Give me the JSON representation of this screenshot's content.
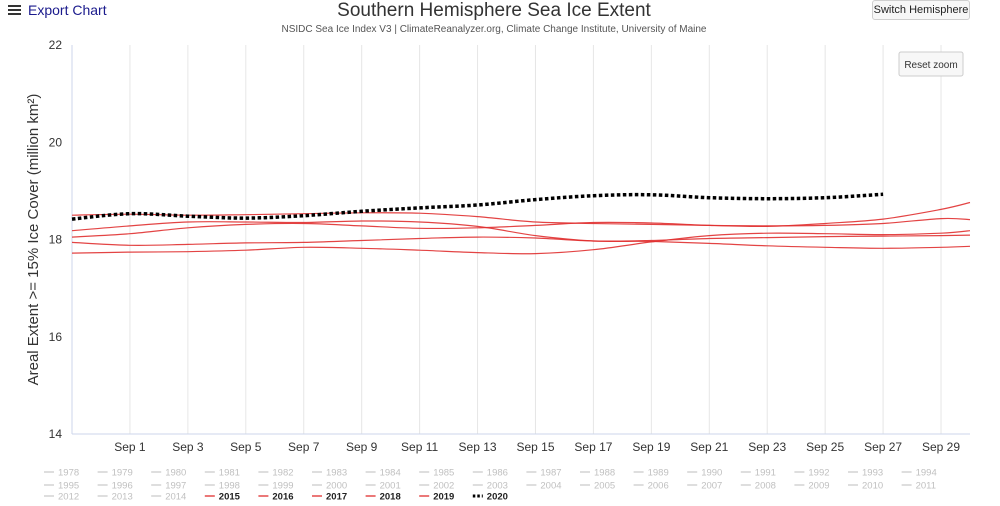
{
  "toolbar": {
    "export_label": "Export Chart",
    "switch_label": "Switch Hemisphere",
    "reset_zoom_label": "Reset zoom"
  },
  "chart_data": {
    "type": "line",
    "title": "Southern Hemisphere Sea Ice Extent",
    "subtitle": "NSIDC Sea Ice Index V3 | ClimateReanalyzer.org, Climate Change Institute, University of Maine",
    "ylabel": "Areal Extent >= 15% Ice Cover (million km²)",
    "ylim": [
      14,
      22
    ],
    "yticks": [
      14,
      16,
      18,
      20,
      22
    ],
    "x_day_range": [
      30,
      61
    ],
    "xticks": [
      {
        "day": 32,
        "label": "Sep 1"
      },
      {
        "day": 34,
        "label": "Sep 3"
      },
      {
        "day": 36,
        "label": "Sep 5"
      },
      {
        "day": 38,
        "label": "Sep 7"
      },
      {
        "day": 40,
        "label": "Sep 9"
      },
      {
        "day": 42,
        "label": "Sep 11"
      },
      {
        "day": 44,
        "label": "Sep 13"
      },
      {
        "day": 46,
        "label": "Sep 15"
      },
      {
        "day": 48,
        "label": "Sep 17"
      },
      {
        "day": 50,
        "label": "Sep 19"
      },
      {
        "day": 52,
        "label": "Sep 21"
      },
      {
        "day": 54,
        "label": "Sep 23"
      },
      {
        "day": 56,
        "label": "Sep 25"
      },
      {
        "day": 58,
        "label": "Sep 27"
      },
      {
        "day": 60,
        "label": "Sep 29"
      }
    ],
    "series": [
      {
        "name": "2015",
        "color": "#e03030",
        "style": "solid",
        "x": [
          30,
          32,
          34,
          36,
          38,
          40,
          42,
          44,
          46,
          48,
          50,
          52,
          54,
          56,
          58,
          60,
          61
        ],
        "y": [
          18.05,
          18.12,
          18.24,
          18.31,
          18.33,
          18.28,
          18.23,
          18.24,
          18.29,
          18.35,
          18.34,
          18.29,
          18.27,
          18.33,
          18.42,
          18.62,
          18.76
        ]
      },
      {
        "name": "2016",
        "color": "#e03030",
        "style": "solid",
        "x": [
          30,
          32,
          34,
          36,
          38,
          40,
          42,
          44,
          46,
          48,
          50,
          52,
          54,
          56,
          58,
          60,
          61
        ],
        "y": [
          17.72,
          17.74,
          17.75,
          17.78,
          17.84,
          17.82,
          17.78,
          17.73,
          17.71,
          17.79,
          17.95,
          18.08,
          18.13,
          18.12,
          18.1,
          18.13,
          18.18
        ]
      },
      {
        "name": "2017",
        "color": "#e03030",
        "style": "solid",
        "x": [
          30,
          32,
          34,
          36,
          38,
          40,
          42,
          44,
          46,
          48,
          50,
          52,
          54,
          56,
          58,
          60,
          61
        ],
        "y": [
          17.94,
          17.88,
          17.9,
          17.93,
          17.94,
          17.98,
          18.02,
          18.05,
          18.03,
          17.97,
          17.98,
          18.02,
          18.04,
          18.06,
          18.07,
          18.08,
          18.09
        ]
      },
      {
        "name": "2018",
        "color": "#e03030",
        "style": "solid",
        "x": [
          30,
          32,
          34,
          36,
          38,
          40,
          42,
          44,
          46,
          48,
          50,
          52,
          54,
          56,
          58,
          60,
          61
        ],
        "y": [
          18.18,
          18.28,
          18.36,
          18.36,
          18.35,
          18.38,
          18.36,
          18.27,
          18.08,
          17.97,
          17.96,
          17.92,
          17.87,
          17.84,
          17.82,
          17.84,
          17.86
        ]
      },
      {
        "name": "2019",
        "color": "#e03030",
        "style": "solid",
        "x": [
          30,
          32,
          34,
          36,
          38,
          40,
          42,
          44,
          46,
          48,
          50,
          52,
          54,
          56,
          58,
          60,
          61
        ],
        "y": [
          18.5,
          18.52,
          18.5,
          18.51,
          18.53,
          18.55,
          18.54,
          18.47,
          18.36,
          18.33,
          18.31,
          18.29,
          18.28,
          18.29,
          18.33,
          18.43,
          18.41
        ]
      },
      {
        "name": "2020",
        "color": "#000000",
        "style": "dotted",
        "x": [
          30,
          32,
          34,
          36,
          38,
          40,
          42,
          44,
          46,
          48,
          50,
          52,
          54,
          56,
          58
        ],
        "y": [
          18.42,
          18.53,
          18.48,
          18.44,
          18.49,
          18.58,
          18.65,
          18.71,
          18.82,
          18.9,
          18.92,
          18.86,
          18.84,
          18.86,
          18.93
        ]
      }
    ],
    "legend": {
      "position": "bottom",
      "rows": [
        [
          "1978",
          "1979",
          "1980",
          "1981",
          "1982",
          "1983",
          "1984",
          "1985",
          "1986",
          "1987",
          "1988",
          "1989",
          "1990",
          "1991",
          "1992",
          "1993",
          "1994"
        ],
        [
          "1995",
          "1996",
          "1997",
          "1998",
          "1999",
          "2000",
          "2001",
          "2002",
          "2003",
          "2004",
          "2005",
          "2006",
          "2007",
          "2008",
          "2009",
          "2010",
          "2011"
        ],
        [
          "2012",
          "2013",
          "2014",
          "2015",
          "2016",
          "2017",
          "2018",
          "2019",
          "2020"
        ]
      ],
      "active": [
        "2015",
        "2016",
        "2017",
        "2018",
        "2019",
        "2020"
      ],
      "inactive_color": "#cccccc",
      "active_line_color": "#e03030",
      "dotted_line_color": "#000000"
    }
  }
}
